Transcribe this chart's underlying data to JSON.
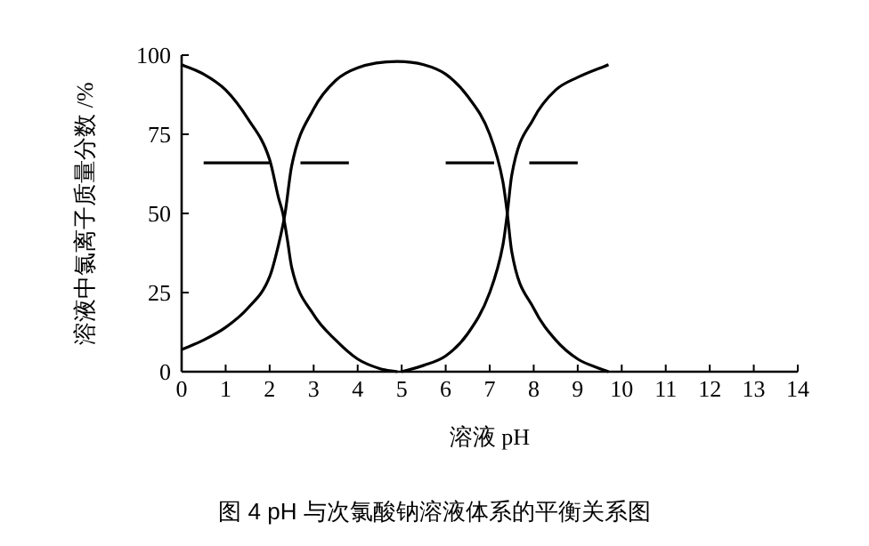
{
  "chart_data": {
    "type": "line",
    "xlabel": "溶液 pH",
    "ylabel": "溶液中氯离子质量分数 /%",
    "annotations": [
      "图 4  pH 与次氯酸钠溶液体系的平衡关系图"
    ],
    "xlim": [
      0,
      14
    ],
    "ylim": [
      0,
      100
    ],
    "xticks": [
      0,
      1,
      2,
      3,
      4,
      5,
      6,
      7,
      8,
      9,
      10,
      11,
      12,
      13,
      14
    ],
    "yticks": [
      0,
      25,
      50,
      75,
      100
    ],
    "grid": false,
    "marker": "none",
    "series": [
      {
        "color": "#000000",
        "line_style": "solid",
        "x": [
          0,
          0.5,
          1,
          1.5,
          2,
          2.2,
          2.3,
          2.4,
          2.5,
          3,
          3.5,
          4,
          4.5,
          4.9
        ],
        "values": [
          97,
          94,
          89,
          80,
          67,
          55,
          50,
          42,
          33,
          18,
          10,
          4,
          1,
          0
        ]
      },
      {
        "color": "#000000",
        "line_style": "solid",
        "x": [
          0,
          0.5,
          1,
          1.5,
          2,
          2.2,
          2.35,
          2.5,
          3,
          3.5,
          4,
          4.9,
          5.5,
          6,
          6.5,
          7,
          7.3,
          7.4,
          7.5,
          8,
          8.5,
          9,
          9.5,
          9.7
        ],
        "values": [
          7,
          10,
          14,
          20,
          30,
          40,
          50,
          65,
          83,
          92,
          96,
          98,
          97,
          94,
          87,
          75,
          60,
          50,
          38,
          20,
          10,
          4,
          1,
          0
        ]
      },
      {
        "color": "#000000",
        "line_style": "solid",
        "x": [
          5,
          5.5,
          6,
          6.5,
          7,
          7.3,
          7.4,
          7.5,
          8,
          8.5,
          9,
          9.7
        ],
        "values": [
          0,
          2,
          5,
          12,
          25,
          40,
          50,
          62,
          80,
          89,
          93,
          97
        ]
      },
      {
        "color": "#000000",
        "line_style": "solid",
        "x": [
          0.5,
          2.0,
          null,
          2.7,
          3.8,
          null,
          6.0,
          7.1,
          null,
          7.9,
          9.0
        ],
        "values": [
          66,
          66,
          null,
          66,
          66,
          null,
          66,
          66,
          null,
          66,
          66
        ]
      }
    ]
  }
}
